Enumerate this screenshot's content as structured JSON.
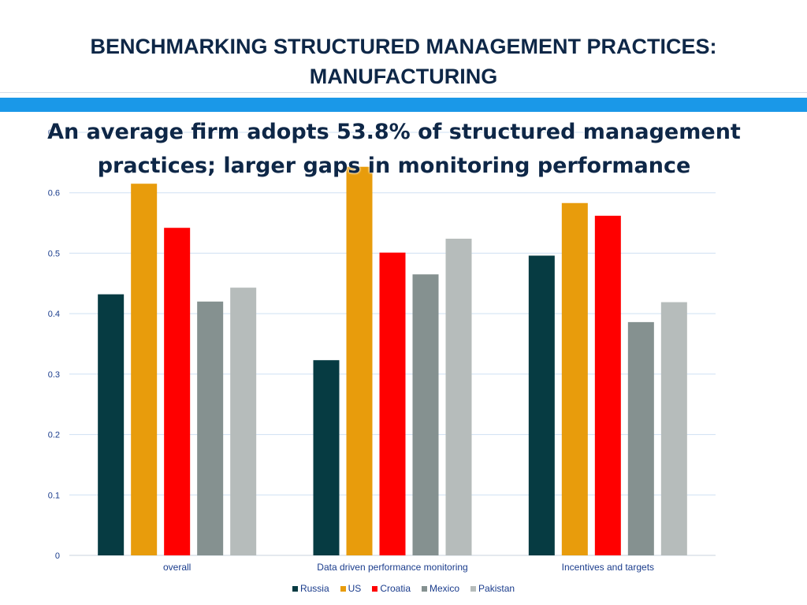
{
  "slide": {
    "title_line1": "BENCHMARKING STRUCTURED MANAGEMENT PRACTICES:",
    "title_line2": "MANUFACTURING"
  },
  "chart_data": {
    "type": "bar",
    "subtitle_line1": "An average firm adopts 53.8% of structured management",
    "subtitle_line2": "practices; larger gaps in monitoring performance",
    "categories": [
      "overall",
      "Data driven performance monitoring",
      "Incentives and targets"
    ],
    "series": [
      {
        "name": "Russia",
        "color": "#063b42",
        "values": [
          0.432,
          0.323,
          0.496
        ]
      },
      {
        "name": "US",
        "color": "#e89c0c",
        "values": [
          0.615,
          0.643,
          0.583
        ]
      },
      {
        "name": "Croatia",
        "color": "#ff0000",
        "values": [
          0.542,
          0.501,
          0.562
        ]
      },
      {
        "name": "Mexico",
        "color": "#859190",
        "values": [
          0.42,
          0.465,
          0.386
        ]
      },
      {
        "name": "Pakistan",
        "color": "#b6bcbb",
        "values": [
          0.443,
          0.524,
          0.419
        ]
      }
    ],
    "ylim": [
      0,
      0.7
    ],
    "yticks": [
      "0",
      "0.1",
      "0.2",
      "0.3",
      "0.4",
      "0.5",
      "0.6",
      "0.7"
    ],
    "grid": true,
    "legend_position": "bottom"
  },
  "colors": {
    "title": "#0e2747",
    "band": "#1a98e8",
    "gridline": "#cfe0f3",
    "axis_text": "#1a3c8c"
  }
}
